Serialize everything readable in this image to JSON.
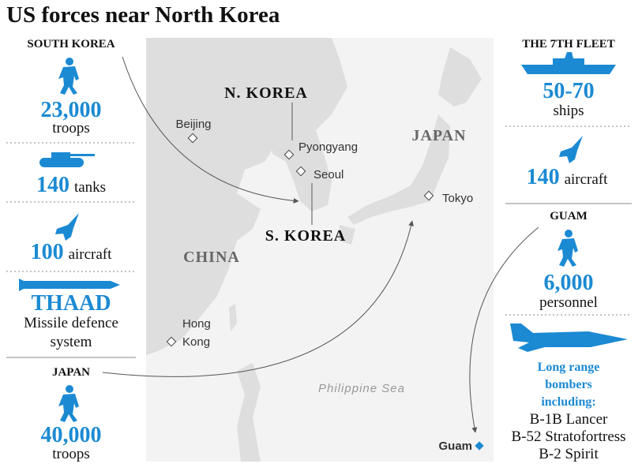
{
  "title": "US forces near North Korea",
  "south_korea": {
    "heading": "SOUTH KOREA",
    "troops": {
      "number": "23,000",
      "unit": "troops"
    },
    "tanks": {
      "number": "140",
      "unit": "tanks"
    },
    "aircraft": {
      "number": "100",
      "unit": "aircraft"
    },
    "thaad": {
      "name": "THAAD",
      "description": [
        "Missile defence",
        "system"
      ]
    }
  },
  "japan": {
    "heading": "JAPAN",
    "troops": {
      "number": "40,000",
      "unit": "troops"
    }
  },
  "seventh_fleet": {
    "heading": "THE 7TH FLEET",
    "ships": {
      "number": "50-70",
      "unit": "ships"
    },
    "aircraft": {
      "number": "140",
      "unit": "aircraft"
    }
  },
  "guam": {
    "heading": "GUAM",
    "personnel": {
      "number": "6,000",
      "unit": "personnel"
    },
    "bombers": {
      "heading": [
        "Long range",
        "bombers",
        "including:"
      ],
      "list": [
        "B-1B Lancer",
        "B-52 Stratofortress",
        "B-2 Spirit"
      ]
    }
  },
  "map": {
    "countries": {
      "north_korea": "N. KOREA",
      "south_korea": "S. KOREA",
      "china": "CHINA",
      "japan": "JAPAN"
    },
    "cities": {
      "beijing": "Beijing",
      "pyongyang": "Pyongyang",
      "seoul": "Seoul",
      "tokyo": "Tokyo",
      "hong_kong": [
        "Hong",
        "Kong"
      ]
    },
    "sea": "Philippine Sea",
    "guam": "Guam"
  }
}
